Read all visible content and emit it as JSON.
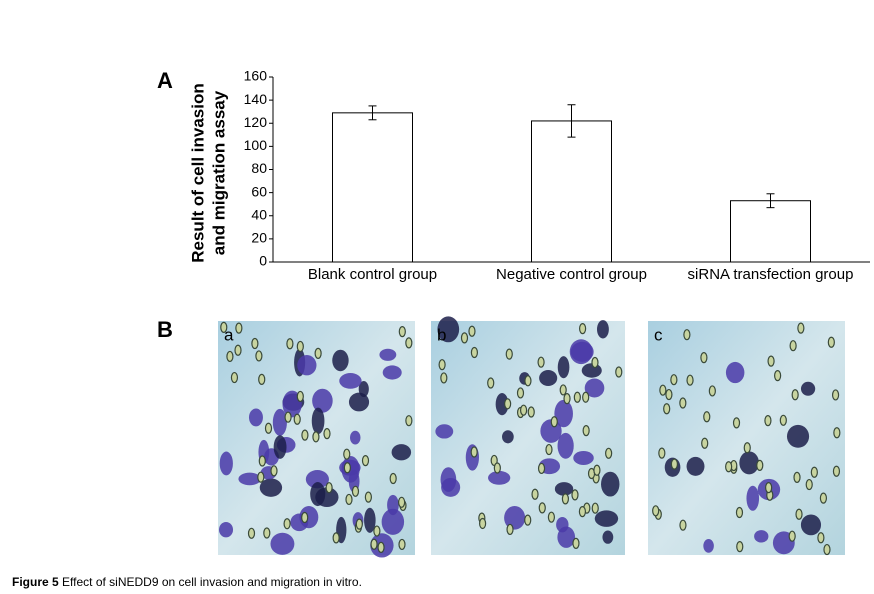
{
  "panel_labels": [
    "A",
    "B"
  ],
  "chart_data": {
    "type": "bar",
    "y_label": [
      "Result of cell invasion",
      "and migration assay"
    ],
    "categories": [
      "Blank control group",
      "Negative control group",
      "siRNA transfection group"
    ],
    "values": [
      129,
      122,
      53
    ],
    "errors": [
      6,
      14,
      6
    ],
    "color": "#ffffff",
    "ylim": [
      0,
      160
    ],
    "yticks": [
      0,
      20,
      40,
      60,
      80,
      100,
      120,
      140,
      160
    ]
  },
  "images": [
    "a",
    "b",
    "c"
  ],
  "caption": {
    "label": "Figure 5",
    "text": " Effect of siNEDD9 on cell invasion and migration in vitro."
  }
}
